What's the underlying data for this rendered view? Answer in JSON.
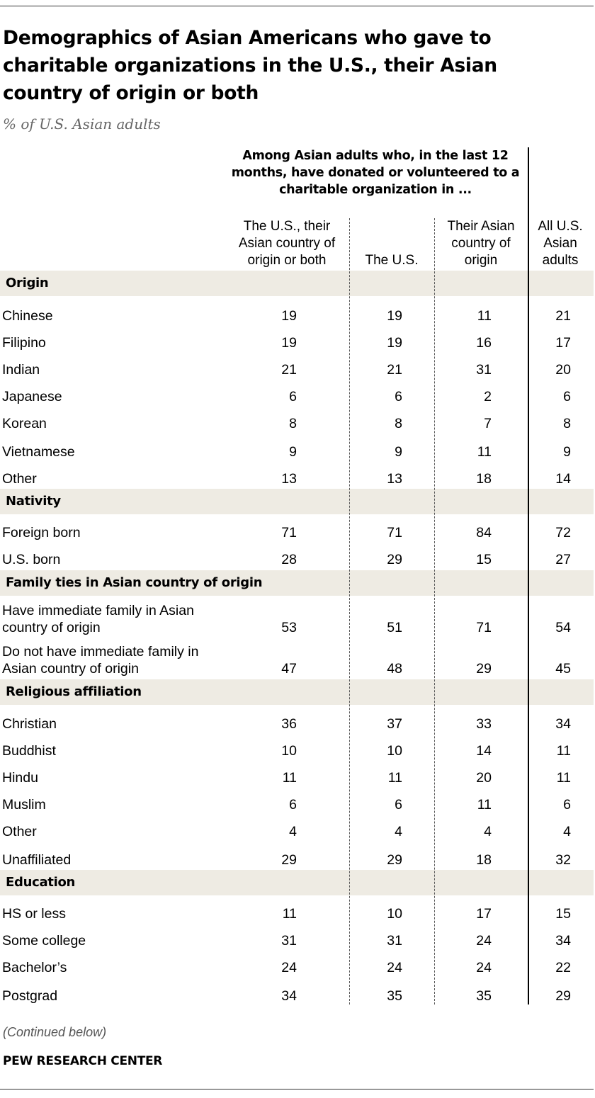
{
  "title": "Demographics of Asian Americans who gave to charitable organizations in the U.S., their Asian country of origin or both",
  "subtitle": "% of U.S. Asian adults",
  "group_header": "Among Asian adults who, in the last 12 months, have donated or volunteered to a charitable organization in ...",
  "columns": [
    "The U.S., their Asian country of origin or both",
    "The U.S.",
    "Their Asian country of origin",
    "All U.S. Asian adults"
  ],
  "note": "(Continued below)",
  "source": "PEW RESEARCH CENTER",
  "chart_data": {
    "type": "table",
    "sections": [
      {
        "name": "Origin",
        "rows": [
          {
            "label": "Chinese",
            "values": [
              19,
              19,
              11,
              21
            ]
          },
          {
            "label": "Filipino",
            "values": [
              19,
              19,
              16,
              17
            ]
          },
          {
            "label": "Indian",
            "values": [
              21,
              21,
              31,
              20
            ]
          },
          {
            "label": "Japanese",
            "values": [
              6,
              6,
              2,
              6
            ]
          },
          {
            "label": "Korean",
            "values": [
              8,
              8,
              7,
              8
            ]
          },
          {
            "label": "Vietnamese",
            "values": [
              9,
              9,
              11,
              9
            ]
          },
          {
            "label": "Other",
            "values": [
              13,
              13,
              18,
              14
            ]
          }
        ]
      },
      {
        "name": "Nativity",
        "rows": [
          {
            "label": "Foreign born",
            "values": [
              71,
              71,
              84,
              72
            ]
          },
          {
            "label": "U.S. born",
            "values": [
              28,
              29,
              15,
              27
            ]
          }
        ]
      },
      {
        "name": "Family ties in Asian country of origin",
        "rows": [
          {
            "label": "Have immediate family in Asian country of origin",
            "values": [
              53,
              51,
              71,
              54
            ]
          },
          {
            "label": "Do not have immediate family in Asian country of origin",
            "values": [
              47,
              48,
              29,
              45
            ]
          }
        ]
      },
      {
        "name": "Religious affiliation",
        "rows": [
          {
            "label": "Christian",
            "values": [
              36,
              37,
              33,
              34
            ]
          },
          {
            "label": "Buddhist",
            "values": [
              10,
              10,
              14,
              11
            ]
          },
          {
            "label": "Hindu",
            "values": [
              11,
              11,
              20,
              11
            ]
          },
          {
            "label": "Muslim",
            "values": [
              6,
              6,
              11,
              6
            ]
          },
          {
            "label": "Other",
            "values": [
              4,
              4,
              4,
              4
            ]
          },
          {
            "label": "Unaffiliated",
            "values": [
              29,
              29,
              18,
              32
            ]
          }
        ]
      },
      {
        "name": "Education",
        "rows": [
          {
            "label": "HS or less",
            "values": [
              11,
              10,
              17,
              15
            ]
          },
          {
            "label": "Some college",
            "values": [
              31,
              31,
              24,
              34
            ]
          },
          {
            "label": "Bachelor’s",
            "values": [
              24,
              24,
              24,
              22
            ]
          },
          {
            "label": "Postgrad",
            "values": [
              34,
              35,
              35,
              29
            ]
          }
        ]
      }
    ]
  }
}
